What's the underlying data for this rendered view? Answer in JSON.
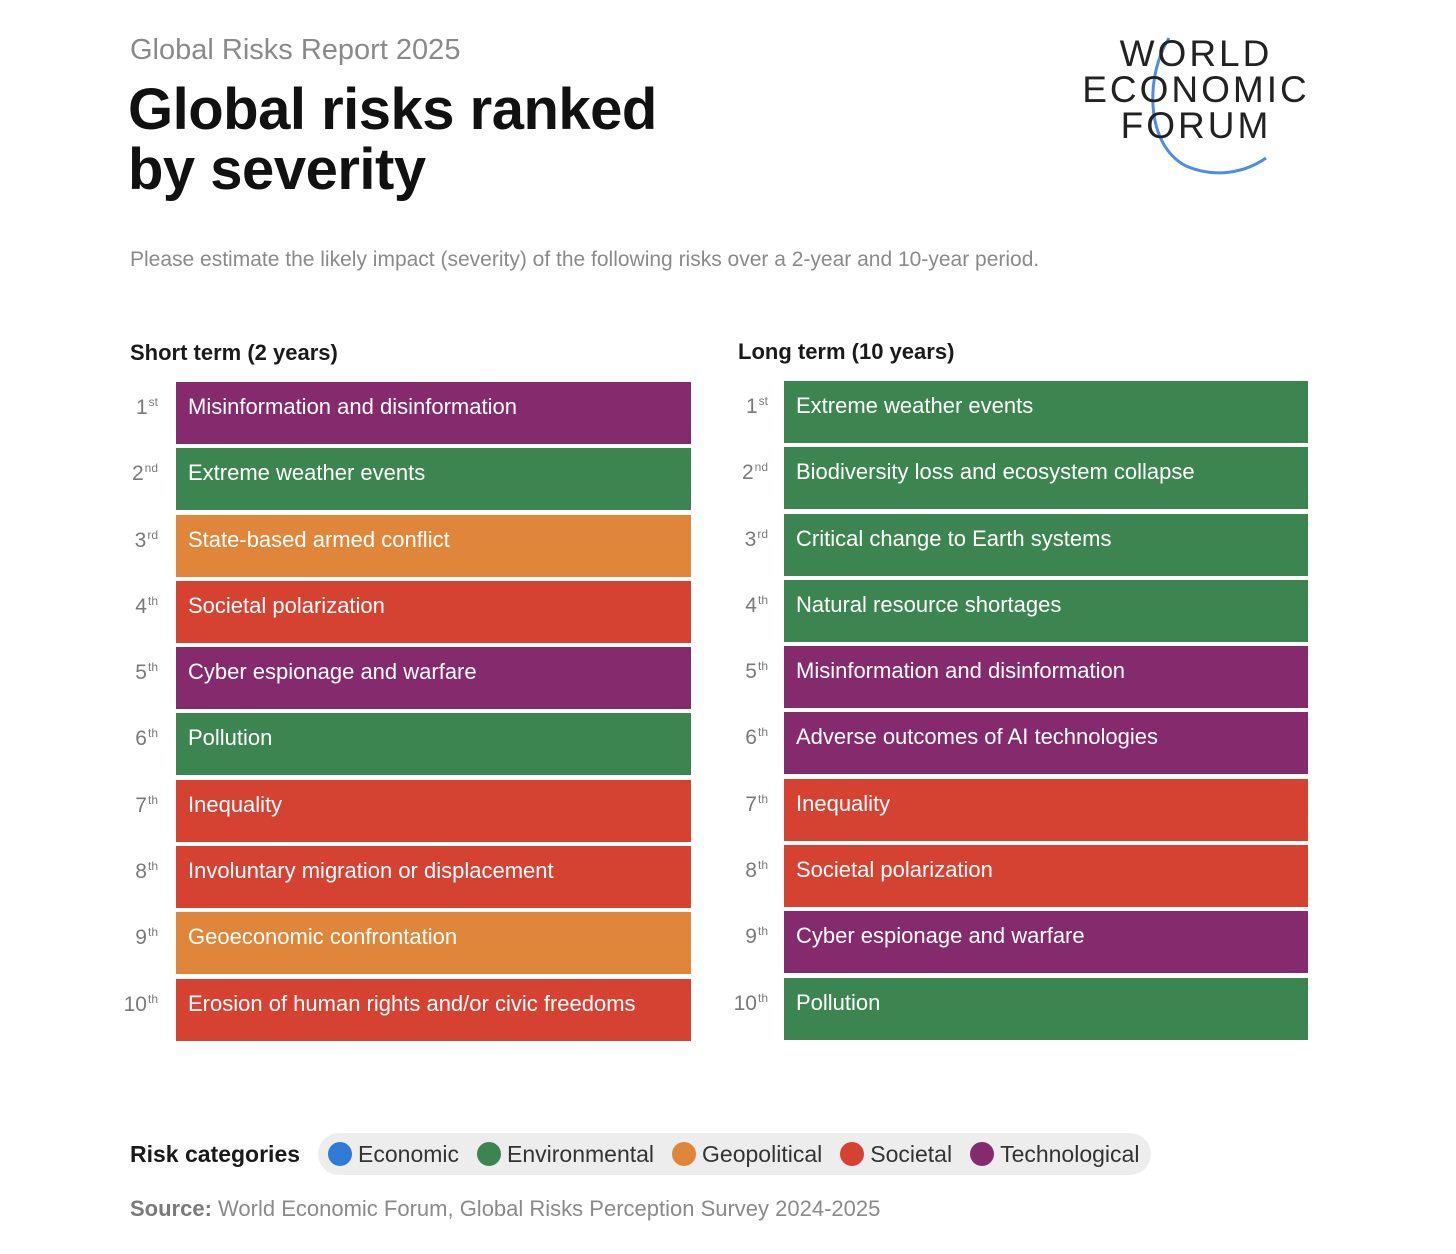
{
  "header": {
    "report_label": "Global Risks Report 2025",
    "title_line1": "Global risks ranked",
    "title_line2": "by severity",
    "question": "Please estimate the likely impact (severity) of the following risks over a 2-year and 10-year period."
  },
  "logo": {
    "line1": "WORLD",
    "line2": "ECONOMIC",
    "line3": "FORUM",
    "arc_color": "#4a8fe0"
  },
  "colors": {
    "Economic": "#2f7bd6",
    "Environmental": "#3c8550",
    "Geopolitical": "#e0863a",
    "Societal": "#d64232",
    "Technological": "#852a6c"
  },
  "short_term": {
    "title": "Short term (2 years)",
    "items": [
      {
        "rank": "1",
        "suffix": "st",
        "label": "Misinformation and disinformation",
        "category": "Technological"
      },
      {
        "rank": "2",
        "suffix": "nd",
        "label": "Extreme weather events",
        "category": "Environmental"
      },
      {
        "rank": "3",
        "suffix": "rd",
        "label": "State-based armed conflict",
        "category": "Geopolitical"
      },
      {
        "rank": "4",
        "suffix": "th",
        "label": "Societal polarization",
        "category": "Societal"
      },
      {
        "rank": "5",
        "suffix": "th",
        "label": "Cyber espionage and warfare",
        "category": "Technological"
      },
      {
        "rank": "6",
        "suffix": "th",
        "label": "Pollution",
        "category": "Environmental"
      },
      {
        "rank": "7",
        "suffix": "th",
        "label": "Inequality",
        "category": "Societal"
      },
      {
        "rank": "8",
        "suffix": "th",
        "label": "Involuntary migration or displacement",
        "category": "Societal"
      },
      {
        "rank": "9",
        "suffix": "th",
        "label": "Geoeconomic confrontation",
        "category": "Geopolitical"
      },
      {
        "rank": "10",
        "suffix": "th",
        "label": "Erosion of human rights and/or civic freedoms",
        "category": "Societal"
      }
    ]
  },
  "long_term": {
    "title": "Long term (10 years)",
    "items": [
      {
        "rank": "1",
        "suffix": "st",
        "label": "Extreme weather events",
        "category": "Environmental"
      },
      {
        "rank": "2",
        "suffix": "nd",
        "label": "Biodiversity loss and ecosystem collapse",
        "category": "Environmental"
      },
      {
        "rank": "3",
        "suffix": "rd",
        "label": "Critical change to Earth systems",
        "category": "Environmental"
      },
      {
        "rank": "4",
        "suffix": "th",
        "label": "Natural resource shortages",
        "category": "Environmental"
      },
      {
        "rank": "5",
        "suffix": "th",
        "label": "Misinformation and disinformation",
        "category": "Technological"
      },
      {
        "rank": "6",
        "suffix": "th",
        "label": "Adverse outcomes of AI technologies",
        "category": "Technological"
      },
      {
        "rank": "7",
        "suffix": "th",
        "label": "Inequality",
        "category": "Societal"
      },
      {
        "rank": "8",
        "suffix": "th",
        "label": "Societal polarization",
        "category": "Societal"
      },
      {
        "rank": "9",
        "suffix": "th",
        "label": "Cyber espionage and warfare",
        "category": "Technological"
      },
      {
        "rank": "10",
        "suffix": "th",
        "label": "Pollution",
        "category": "Environmental"
      }
    ]
  },
  "legend": {
    "title": "Risk categories",
    "items": [
      "Economic",
      "Environmental",
      "Geopolitical",
      "Societal",
      "Technological"
    ]
  },
  "source": {
    "label": "Source:",
    "text": " World Economic Forum, Global Risks Perception Survey 2024-2025"
  }
}
